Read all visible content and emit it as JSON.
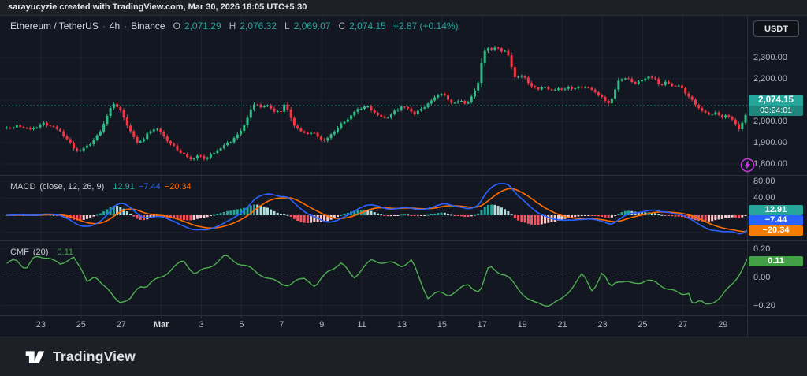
{
  "attribution": {
    "text": "sarayucyzie created with TradingView.com, Mar 30, 2026 18:05 UTC+5:30"
  },
  "logo_bar": {
    "brand": "TradingView"
  },
  "toolbar": {
    "currency_button": "USDT"
  },
  "symbol_header": {
    "title": "Ethereum / TetherUS",
    "separator": "·",
    "interval": "4h",
    "exchange": "Binance",
    "ohlc": {
      "o_label": "O",
      "o": "2,071.29",
      "h_label": "H",
      "h": "2,076.32",
      "l_label": "L",
      "l": "2,069.07",
      "c_label": "C",
      "c": "2,074.15",
      "change": "+2.87 (+0.14%)"
    }
  },
  "price_scale": {
    "current_price": "2,074.15",
    "countdown": "03:24:01",
    "current_price_value": 2074.15
  },
  "macd": {
    "title": "MACD",
    "params": "(close, 12, 26, 9)",
    "hist": "12.91",
    "macd": "−7.44",
    "signal": "−20.34"
  },
  "cmf": {
    "title": "CMF",
    "params": "(20)",
    "value": "0.11"
  },
  "colors": {
    "up": "#2ebd85",
    "down": "#f23645",
    "accent_teal": "#26a69a",
    "macd_line": "#2962ff",
    "signal_line": "#ff6d00",
    "hist_grow_above": "#26a69a",
    "hist_fall_above": "#b2dfdb",
    "hist_fall_below": "#f7525f",
    "hist_grow_below": "#fccbcd",
    "cmf_line": "#4caf50",
    "badge_blue": "#2962ff",
    "badge_orange": "#f57c00",
    "badge_green": "#43a047",
    "flash_purple": "#c83ae0"
  },
  "chart_data": [
    {
      "type": "candlestick",
      "title": "Ethereum / TetherUS · 4h · Binance",
      "x_unit": "days_since_feb21",
      "t_start": 0.3,
      "t_end": 37.32,
      "candle_step_days": 0.166667,
      "ylim": [
        1780,
        2420
      ],
      "last": {
        "o": 2071.29,
        "h": 2076.32,
        "l": 2069.07,
        "c": 2074.15,
        "change": 2.87,
        "change_pct": 0.14
      },
      "last_close": 2074.15,
      "y_ticks": [
        {
          "v": 2300,
          "label": "2,300.00"
        },
        {
          "v": 2200,
          "label": "2,200.00"
        },
        {
          "v": 2100,
          "label": "2,100.00"
        },
        {
          "v": 2000,
          "label": "2,000.00"
        },
        {
          "v": 1900,
          "label": "1,900.00"
        },
        {
          "v": 1800,
          "label": "1,800.00"
        }
      ],
      "x_ticks": [
        {
          "d": 2,
          "label": "23"
        },
        {
          "d": 4,
          "label": "25"
        },
        {
          "d": 6,
          "label": "27"
        },
        {
          "d": 8,
          "label": "Mar",
          "bold": true
        },
        {
          "d": 10,
          "label": "3"
        },
        {
          "d": 12,
          "label": "5"
        },
        {
          "d": 14,
          "label": "7"
        },
        {
          "d": 16,
          "label": "9"
        },
        {
          "d": 18,
          "label": "11"
        },
        {
          "d": 20,
          "label": "13"
        },
        {
          "d": 22,
          "label": "15"
        },
        {
          "d": 24,
          "label": "17"
        },
        {
          "d": 26,
          "label": "19"
        },
        {
          "d": 28,
          "label": "21"
        },
        {
          "d": 30,
          "label": "23"
        },
        {
          "d": 32,
          "label": "25"
        },
        {
          "d": 34,
          "label": "27"
        },
        {
          "d": 36,
          "label": "29"
        }
      ],
      "close_anchors": [
        [
          0.3,
          1968
        ],
        [
          0.9,
          1978
        ],
        [
          1.5,
          1962
        ],
        [
          2.1,
          1990
        ],
        [
          2.6,
          1975
        ],
        [
          3.0,
          1950
        ],
        [
          3.3,
          1915
        ],
        [
          3.65,
          1875
        ],
        [
          3.9,
          1856
        ],
        [
          4.2,
          1880
        ],
        [
          4.6,
          1905
        ],
        [
          4.9,
          1945
        ],
        [
          5.2,
          2000
        ],
        [
          5.45,
          2060
        ],
        [
          5.65,
          2085
        ],
        [
          5.9,
          2060
        ],
        [
          6.2,
          2005
        ],
        [
          6.5,
          1945
        ],
        [
          6.8,
          1900
        ],
        [
          7.1,
          1915
        ],
        [
          7.4,
          1950
        ],
        [
          7.7,
          1970
        ],
        [
          8.0,
          1945
        ],
        [
          8.3,
          1910
        ],
        [
          8.7,
          1875
        ],
        [
          9.1,
          1845
        ],
        [
          9.5,
          1820
        ],
        [
          9.8,
          1838
        ],
        [
          10.2,
          1826
        ],
        [
          10.6,
          1850
        ],
        [
          11.0,
          1878
        ],
        [
          11.4,
          1902
        ],
        [
          11.8,
          1935
        ],
        [
          12.1,
          1975
        ],
        [
          12.35,
          2030
        ],
        [
          12.55,
          2070
        ],
        [
          12.75,
          2090
        ],
        [
          13.0,
          2060
        ],
        [
          13.3,
          2078
        ],
        [
          13.6,
          2048
        ],
        [
          13.95,
          2042
        ],
        [
          14.15,
          2088
        ],
        [
          14.35,
          2040
        ],
        [
          14.6,
          1985
        ],
        [
          14.9,
          1958
        ],
        [
          15.2,
          1938
        ],
        [
          15.5,
          1952
        ],
        [
          15.8,
          1928
        ],
        [
          16.1,
          1908
        ],
        [
          16.4,
          1928
        ],
        [
          16.7,
          1962
        ],
        [
          17.0,
          1988
        ],
        [
          17.3,
          2012
        ],
        [
          17.6,
          2042
        ],
        [
          17.9,
          2062
        ],
        [
          18.2,
          2072
        ],
        [
          18.5,
          2052
        ],
        [
          18.8,
          2030
        ],
        [
          19.1,
          2012
        ],
        [
          19.4,
          2028
        ],
        [
          19.7,
          2052
        ],
        [
          20.0,
          2072
        ],
        [
          20.3,
          2058
        ],
        [
          20.6,
          2036
        ],
        [
          20.9,
          2052
        ],
        [
          21.2,
          2075
        ],
        [
          21.5,
          2100
        ],
        [
          21.8,
          2125
        ],
        [
          22.0,
          2135
        ],
        [
          22.3,
          2100
        ],
        [
          22.6,
          2085
        ],
        [
          22.9,
          2098
        ],
        [
          23.2,
          2082
        ],
        [
          23.5,
          2115
        ],
        [
          23.8,
          2185
        ],
        [
          24.0,
          2290
        ],
        [
          24.2,
          2350
        ],
        [
          24.4,
          2335
        ],
        [
          24.6,
          2350
        ],
        [
          24.8,
          2338
        ],
        [
          25.0,
          2330
        ],
        [
          25.2,
          2336
        ],
        [
          25.4,
          2280
        ],
        [
          25.6,
          2205
        ],
        [
          25.9,
          2218
        ],
        [
          26.2,
          2196
        ],
        [
          26.5,
          2162
        ],
        [
          26.8,
          2150
        ],
        [
          27.1,
          2168
        ],
        [
          27.4,
          2138
        ],
        [
          27.7,
          2158
        ],
        [
          28.0,
          2146
        ],
        [
          28.3,
          2162
        ],
        [
          28.6,
          2150
        ],
        [
          28.9,
          2165
        ],
        [
          29.2,
          2158
        ],
        [
          29.5,
          2148
        ],
        [
          29.8,
          2125
        ],
        [
          30.1,
          2098
        ],
        [
          30.4,
          2086
        ],
        [
          30.6,
          2140
        ],
        [
          30.8,
          2192
        ],
        [
          31.1,
          2205
        ],
        [
          31.4,
          2190
        ],
        [
          31.7,
          2178
        ],
        [
          32.0,
          2195
        ],
        [
          32.3,
          2212
        ],
        [
          32.6,
          2198
        ],
        [
          32.9,
          2170
        ],
        [
          33.2,
          2185
        ],
        [
          33.5,
          2165
        ],
        [
          33.8,
          2168
        ],
        [
          34.1,
          2140
        ],
        [
          34.4,
          2105
        ],
        [
          34.7,
          2072
        ],
        [
          35.0,
          2048
        ],
        [
          35.3,
          2030
        ],
        [
          35.6,
          2044
        ],
        [
          35.9,
          2018
        ],
        [
          36.2,
          2032
        ],
        [
          36.5,
          2002
        ],
        [
          36.8,
          1968
        ],
        [
          37.0,
          1995
        ],
        [
          37.2,
          2045
        ],
        [
          37.4,
          2074.15
        ]
      ]
    },
    {
      "type": "line+histogram",
      "title": "MACD (close, 12, 26, 9)",
      "params": {
        "fast": 12,
        "slow": 26,
        "signal": 9,
        "source": "close"
      },
      "current": {
        "histogram": 12.91,
        "macd": -7.44,
        "signal": -20.34
      },
      "computed_from": "candlestick closes",
      "ylim": [
        -59,
        93
      ],
      "y_ticks": [
        {
          "v": 80,
          "label": "80.00"
        },
        {
          "v": 40,
          "label": "40.00"
        }
      ]
    },
    {
      "type": "line",
      "title": "CMF (20)",
      "period": 20,
      "current": 0.11,
      "ylim": [
        -0.26,
        0.25
      ],
      "y_ticks": [
        {
          "v": 0.2,
          "label": "0.20"
        },
        {
          "v": 0,
          "label": "0.00"
        },
        {
          "v": -0.2,
          "label": "−0.20"
        }
      ],
      "points": [
        [
          0.1,
          0.08
        ],
        [
          0.75,
          0.12
        ],
        [
          1.25,
          0.064
        ],
        [
          1.65,
          0.13
        ],
        [
          2.4,
          0.147
        ],
        [
          3.0,
          0.075
        ],
        [
          3.6,
          0.158
        ],
        [
          4.3,
          -0.036
        ],
        [
          4.7,
          0.019
        ],
        [
          5.1,
          -0.064
        ],
        [
          5.9,
          -0.168
        ],
        [
          6.4,
          -0.175
        ],
        [
          6.9,
          -0.057
        ],
        [
          7.3,
          -0.064
        ],
        [
          8.9,
          0.092
        ],
        [
          9.1,
          0.119
        ],
        [
          9.7,
          0.019
        ],
        [
          10.3,
          0.064
        ],
        [
          11.2,
          0.147
        ],
        [
          13.0,
          0.019
        ],
        [
          13.4,
          -0.019
        ],
        [
          14.4,
          -0.057
        ],
        [
          15.2,
          0.0
        ],
        [
          15.7,
          -0.075
        ],
        [
          16.35,
          0.054
        ],
        [
          17.0,
          0.092
        ],
        [
          17.6,
          0.0
        ],
        [
          18.5,
          0.119
        ],
        [
          20.0,
          0.082
        ],
        [
          20.5,
          0.119
        ],
        [
          20.9,
          -0.029
        ],
        [
          21.3,
          -0.14
        ],
        [
          21.7,
          -0.112
        ],
        [
          22.3,
          -0.125
        ],
        [
          23.3,
          -0.057
        ],
        [
          23.9,
          -0.103
        ],
        [
          24.3,
          0.054
        ],
        [
          24.4,
          0.073
        ],
        [
          25.2,
          0.008
        ],
        [
          26.4,
          -0.168
        ],
        [
          26.6,
          -0.186
        ],
        [
          27.4,
          -0.195
        ],
        [
          27.9,
          -0.168
        ],
        [
          29.0,
          0.018
        ],
        [
          29.5,
          -0.093
        ],
        [
          30.0,
          0.027
        ],
        [
          30.4,
          -0.075
        ],
        [
          30.7,
          -0.019
        ],
        [
          31.5,
          -0.05
        ],
        [
          32.2,
          -0.02
        ],
        [
          33.4,
          -0.084
        ],
        [
          33.9,
          -0.13
        ],
        [
          34.3,
          -0.103
        ],
        [
          34.5,
          -0.186
        ],
        [
          34.9,
          -0.175
        ],
        [
          35.1,
          -0.195
        ],
        [
          35.9,
          -0.149
        ],
        [
          36.3,
          -0.075
        ],
        [
          36.9,
          0.037
        ],
        [
          37.3,
          0.137
        ],
        [
          37.45,
          0.11
        ]
      ]
    }
  ]
}
